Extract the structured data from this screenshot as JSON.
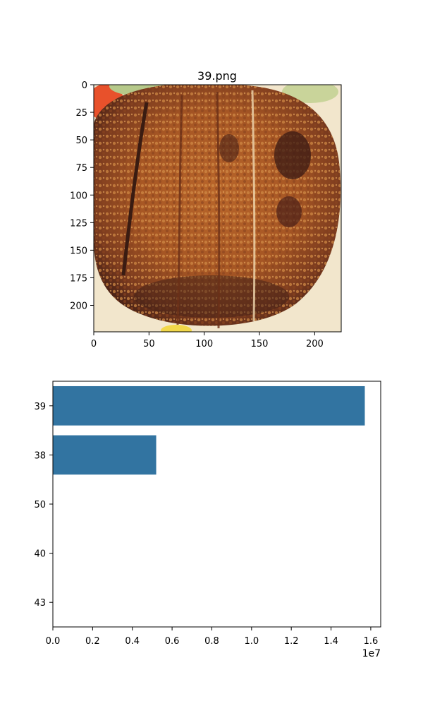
{
  "chart_data": [
    {
      "type": "image",
      "title": "39.png",
      "xlim": [
        0,
        224
      ],
      "ylim": [
        224,
        0
      ],
      "xticks": [
        0,
        50,
        100,
        150,
        200
      ],
      "yticks": [
        0,
        25,
        50,
        75,
        100,
        125,
        150,
        175,
        200
      ]
    },
    {
      "type": "bar",
      "orientation": "horizontal",
      "categories": [
        "39",
        "38",
        "50",
        "40",
        "43"
      ],
      "values": [
        15700000,
        5200000,
        0,
        0,
        0
      ],
      "xlim": [
        0,
        16500000
      ],
      "xticks": [
        0,
        2000000,
        4000000,
        6000000,
        8000000,
        10000000,
        12000000,
        14000000,
        16000000
      ],
      "xtick_labels": [
        "0.0",
        "0.2",
        "0.4",
        "0.6",
        "0.8",
        "1.0",
        "1.2",
        "1.4",
        "1.6"
      ],
      "x_offset_label": "1e7",
      "bar_color": "#3274a1"
    }
  ]
}
